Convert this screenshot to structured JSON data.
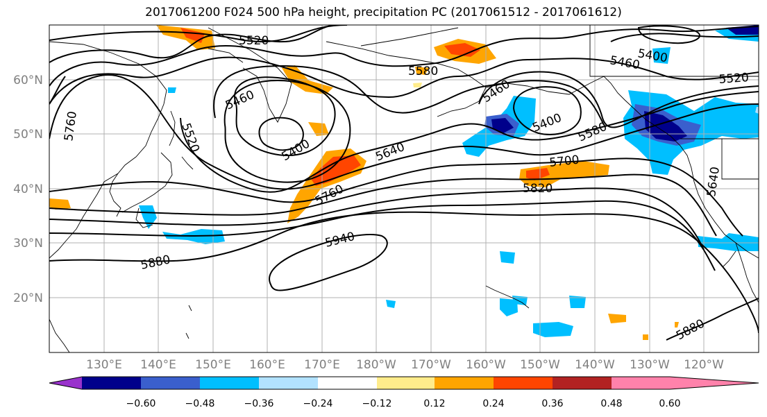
{
  "title": "2017061200 F024 500 hPa height, precipitation PC (2017061512 - 2017061612)",
  "lat_labels": [
    "60°N",
    "50°N",
    "40°N",
    "30°N",
    "20°N"
  ],
  "lon_labels": [
    "130°E",
    "140°E",
    "150°E",
    "160°E",
    "170°E",
    "180°W",
    "170°W",
    "160°W",
    "150°W",
    "140°W",
    "130°W",
    "120°W"
  ],
  "contour_labels": [
    "5520",
    "5580",
    "5460",
    "5520",
    "5400",
    "5640",
    "5760",
    "5940",
    "5880",
    "5460",
    "5400",
    "5580",
    "5700",
    "5820",
    "5400",
    "5460",
    "5520",
    "5640",
    "5880",
    "5760"
  ],
  "colorbar": {
    "ticks": [
      "−0.60",
      "−0.48",
      "−0.36",
      "−0.24",
      "−0.12",
      "0.12",
      "0.24",
      "0.36",
      "0.48",
      "0.60"
    ],
    "colors": [
      "#9932cc",
      "#00008b",
      "#3a5fcd",
      "#00bfff",
      "#b2e2ff",
      "#ffffff",
      "#ffec8b",
      "#ffa500",
      "#ff4500",
      "#b22222",
      "#ff82ab"
    ]
  }
}
